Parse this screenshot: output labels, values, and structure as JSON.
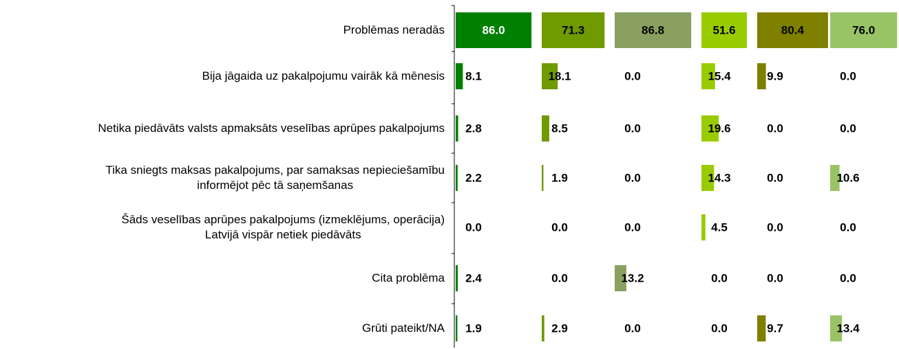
{
  "chart_data": {
    "type": "bar",
    "categories": [
      "Problēmas neradās",
      "Bija jāgaida uz pakalpojumu vairāk kā mēnesis",
      "Netika piedāvāts valsts apmaksāts veselības aprūpes pakalpojums",
      "Tika sniegts maksas pakalpojums, par samaksas nepieciešamību\ninformējot pēc tā saņemšanas",
      "Šāds veselības aprūpes pakalpojums (izmeklējums, operācija)\nLatvijā vispār netiek piedāvāts",
      "Cita problēma",
      "Grūti pateikt/NA"
    ],
    "series": [
      {
        "color": "#008000",
        "values": [
          86.0,
          8.1,
          2.8,
          2.2,
          0.0,
          2.4,
          1.9
        ],
        "value_labels": [
          "86.0",
          "8.1",
          "2.8",
          "2.2",
          "0.0",
          "2.4",
          "1.9"
        ]
      },
      {
        "color": "#6f9a00",
        "values": [
          71.3,
          18.1,
          8.5,
          1.9,
          0.0,
          0.0,
          2.9
        ],
        "value_labels": [
          "71.3",
          "18.1",
          "8.5",
          "1.9",
          "0.0",
          "0.0",
          "2.9"
        ]
      },
      {
        "color": "#8aa060",
        "values": [
          86.8,
          0.0,
          0.0,
          0.0,
          0.0,
          13.2,
          0.0
        ],
        "value_labels": [
          "86.8",
          "0.0",
          "0.0",
          "0.0",
          "0.0",
          "13.2",
          "0.0"
        ]
      },
      {
        "color": "#99cc00",
        "values": [
          51.6,
          15.4,
          19.6,
          14.3,
          4.5,
          0.0,
          0.0
        ],
        "value_labels": [
          "51.6",
          "15.4",
          "19.6",
          "14.3",
          "4.5",
          "0.0",
          "0.0"
        ]
      },
      {
        "color": "#808000",
        "values": [
          80.4,
          9.9,
          0.0,
          0.0,
          0.0,
          0.0,
          9.7
        ],
        "value_labels": [
          "80.4",
          "9.9",
          "0.0",
          "0.0",
          "0.0",
          "0.0",
          "9.7"
        ]
      },
      {
        "color": "#99c466",
        "values": [
          76.0,
          0.0,
          0.0,
          10.6,
          0.0,
          0.0,
          13.4
        ],
        "value_labels": [
          "76.0",
          "0.0",
          "0.0",
          "10.6",
          "0.0",
          "0.0",
          "13.4"
        ]
      }
    ]
  }
}
